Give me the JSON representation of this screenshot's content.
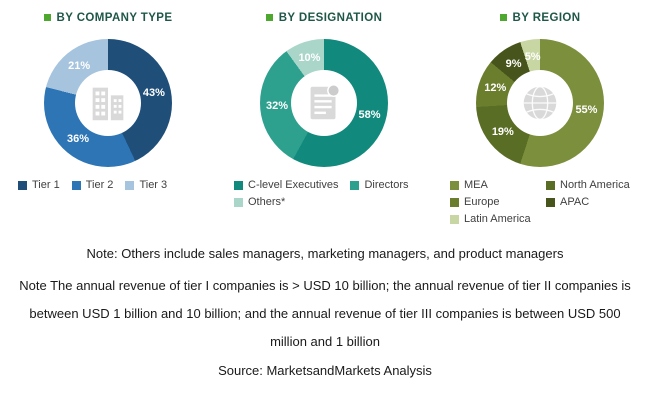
{
  "styles": {
    "title_color": "#1E5748",
    "bullet_color": "#4EA72E",
    "note_color": "#1a1a1a",
    "legend_text_color": "#404040",
    "icon_color": "#D9D9D9"
  },
  "chart_data": [
    {
      "type": "pie",
      "title": "BY COMPANY TYPE",
      "labels": [
        "Tier 1",
        "Tier 2",
        "Tier 3"
      ],
      "values": [
        43,
        36,
        21
      ],
      "colors": [
        "#1F4E79",
        "#2E75B6",
        "#A6C4DE"
      ],
      "center_icon": "building-icon",
      "legend_position": "bottom",
      "legend_rows": [
        [
          0,
          1,
          2
        ]
      ]
    },
    {
      "type": "pie",
      "title": "BY DESIGNATION",
      "labels": [
        "C-level Executives",
        "Directors",
        "Others*"
      ],
      "values": [
        58,
        32,
        10
      ],
      "colors": [
        "#11897C",
        "#2EA08E",
        "#A9D6C9"
      ],
      "center_icon": "document-icon",
      "legend_position": "bottom",
      "legend_rows": [
        [
          0,
          1
        ],
        [
          2
        ]
      ]
    },
    {
      "type": "pie",
      "title": "BY REGION",
      "labels": [
        "MEA",
        "North America",
        "Europe",
        "APAC",
        "Latin America"
      ],
      "values": [
        55,
        19,
        12,
        9,
        5
      ],
      "colors": [
        "#7C8F3C",
        "#5A6D24",
        "#6B7E2E",
        "#47551C",
        "#C7D6A2"
      ],
      "center_icon": "globe-icon",
      "legend_position": "bottom",
      "legend_rows": [
        [
          0,
          1
        ],
        [
          2,
          3
        ],
        [
          4
        ]
      ]
    }
  ],
  "notes": {
    "others": "Note: Others include sales managers, marketing managers, and product managers",
    "tiers": "Note The annual revenue of tier I companies is > USD 10 billion; the annual revenue of tier II companies is between USD 1 billion and 10 billion; and the annual revenue of tier III companies is between USD 500 million and 1 billion",
    "source": "Source: MarketsandMarkets Analysis"
  }
}
